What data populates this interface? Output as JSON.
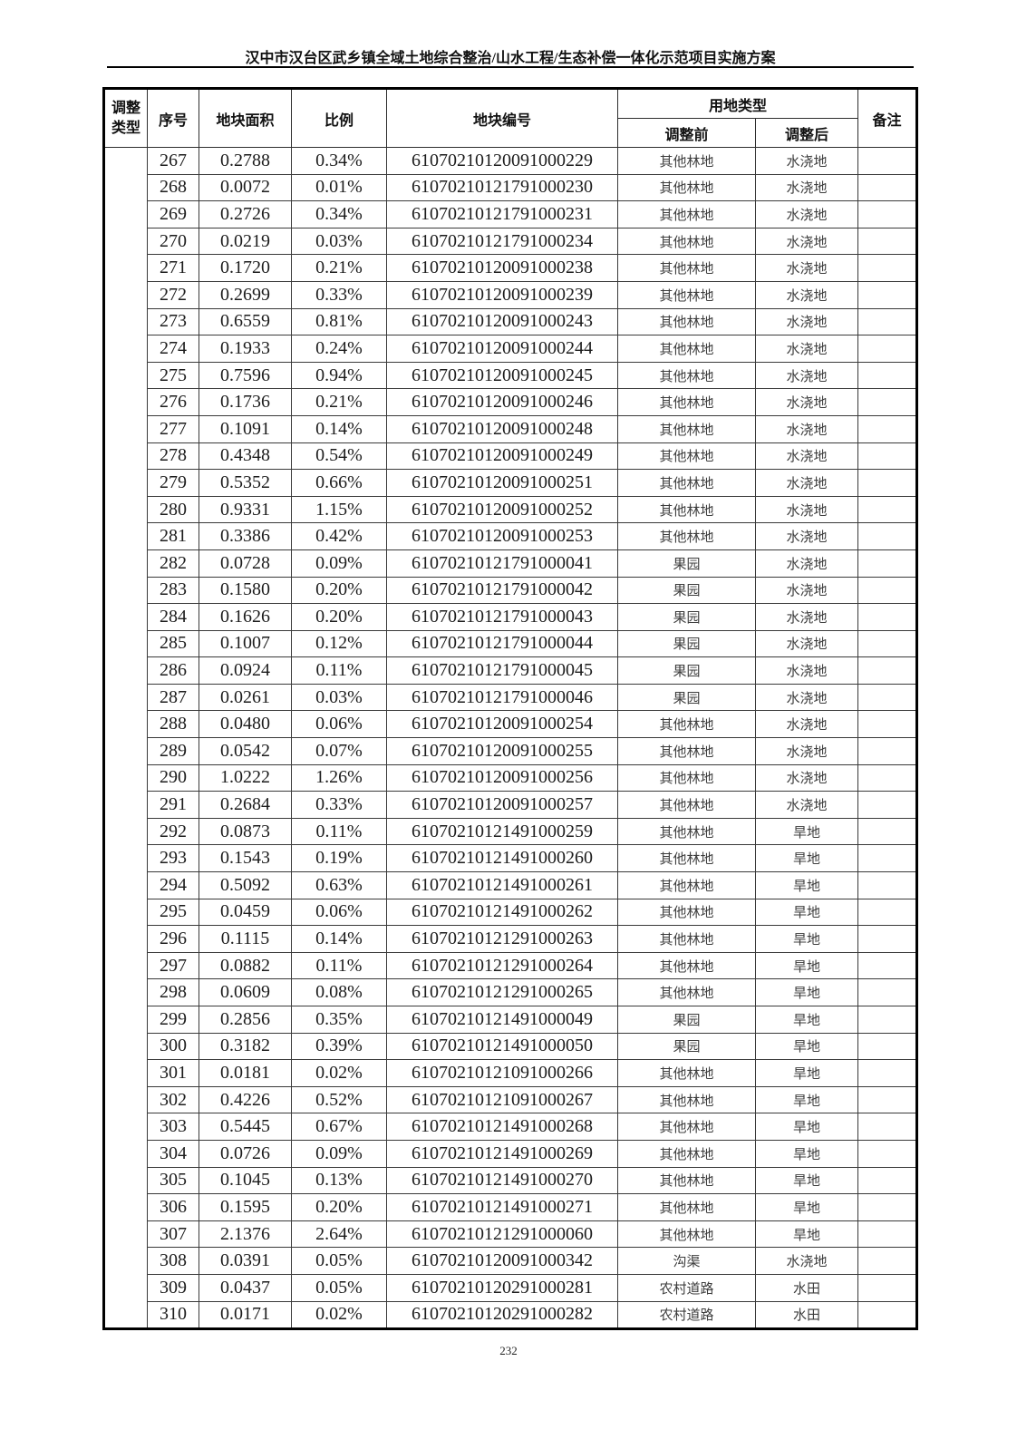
{
  "page": {
    "header_title": "汉中市汉台区武乡镇全域土地综合整治/山水工程/生态补偿一体化示范项目实施方案",
    "page_number": "232"
  },
  "table": {
    "headers": {
      "adjust_type": "调整类型",
      "seq": "序号",
      "area": "地块面积",
      "ratio": "比例",
      "plot_id": "地块编号",
      "land_use_type": "用地类型",
      "before": "调整前",
      "after": "调整后",
      "remark": "备注"
    },
    "merged_type_cell": "",
    "rows": [
      [
        "267",
        "0.2788",
        "0.34%",
        "61070210120091000229",
        "其他林地",
        "水浇地",
        ""
      ],
      [
        "268",
        "0.0072",
        "0.01%",
        "61070210121791000230",
        "其他林地",
        "水浇地",
        ""
      ],
      [
        "269",
        "0.2726",
        "0.34%",
        "61070210121791000231",
        "其他林地",
        "水浇地",
        ""
      ],
      [
        "270",
        "0.0219",
        "0.03%",
        "61070210121791000234",
        "其他林地",
        "水浇地",
        ""
      ],
      [
        "271",
        "0.1720",
        "0.21%",
        "61070210120091000238",
        "其他林地",
        "水浇地",
        ""
      ],
      [
        "272",
        "0.2699",
        "0.33%",
        "61070210120091000239",
        "其他林地",
        "水浇地",
        ""
      ],
      [
        "273",
        "0.6559",
        "0.81%",
        "61070210120091000243",
        "其他林地",
        "水浇地",
        ""
      ],
      [
        "274",
        "0.1933",
        "0.24%",
        "61070210120091000244",
        "其他林地",
        "水浇地",
        ""
      ],
      [
        "275",
        "0.7596",
        "0.94%",
        "61070210120091000245",
        "其他林地",
        "水浇地",
        ""
      ],
      [
        "276",
        "0.1736",
        "0.21%",
        "61070210120091000246",
        "其他林地",
        "水浇地",
        ""
      ],
      [
        "277",
        "0.1091",
        "0.14%",
        "61070210120091000248",
        "其他林地",
        "水浇地",
        ""
      ],
      [
        "278",
        "0.4348",
        "0.54%",
        "61070210120091000249",
        "其他林地",
        "水浇地",
        ""
      ],
      [
        "279",
        "0.5352",
        "0.66%",
        "61070210120091000251",
        "其他林地",
        "水浇地",
        ""
      ],
      [
        "280",
        "0.9331",
        "1.15%",
        "61070210120091000252",
        "其他林地",
        "水浇地",
        ""
      ],
      [
        "281",
        "0.3386",
        "0.42%",
        "61070210120091000253",
        "其他林地",
        "水浇地",
        ""
      ],
      [
        "282",
        "0.0728",
        "0.09%",
        "61070210121791000041",
        "果园",
        "水浇地",
        ""
      ],
      [
        "283",
        "0.1580",
        "0.20%",
        "61070210121791000042",
        "果园",
        "水浇地",
        ""
      ],
      [
        "284",
        "0.1626",
        "0.20%",
        "61070210121791000043",
        "果园",
        "水浇地",
        ""
      ],
      [
        "285",
        "0.1007",
        "0.12%",
        "61070210121791000044",
        "果园",
        "水浇地",
        ""
      ],
      [
        "286",
        "0.0924",
        "0.11%",
        "61070210121791000045",
        "果园",
        "水浇地",
        ""
      ],
      [
        "287",
        "0.0261",
        "0.03%",
        "61070210121791000046",
        "果园",
        "水浇地",
        ""
      ],
      [
        "288",
        "0.0480",
        "0.06%",
        "61070210120091000254",
        "其他林地",
        "水浇地",
        ""
      ],
      [
        "289",
        "0.0542",
        "0.07%",
        "61070210120091000255",
        "其他林地",
        "水浇地",
        ""
      ],
      [
        "290",
        "1.0222",
        "1.26%",
        "61070210120091000256",
        "其他林地",
        "水浇地",
        ""
      ],
      [
        "291",
        "0.2684",
        "0.33%",
        "61070210120091000257",
        "其他林地",
        "水浇地",
        ""
      ],
      [
        "292",
        "0.0873",
        "0.11%",
        "61070210121491000259",
        "其他林地",
        "旱地",
        ""
      ],
      [
        "293",
        "0.1543",
        "0.19%",
        "61070210121491000260",
        "其他林地",
        "旱地",
        ""
      ],
      [
        "294",
        "0.5092",
        "0.63%",
        "61070210121491000261",
        "其他林地",
        "旱地",
        ""
      ],
      [
        "295",
        "0.0459",
        "0.06%",
        "61070210121491000262",
        "其他林地",
        "旱地",
        ""
      ],
      [
        "296",
        "0.1115",
        "0.14%",
        "61070210121291000263",
        "其他林地",
        "旱地",
        ""
      ],
      [
        "297",
        "0.0882",
        "0.11%",
        "61070210121291000264",
        "其他林地",
        "旱地",
        ""
      ],
      [
        "298",
        "0.0609",
        "0.08%",
        "61070210121291000265",
        "其他林地",
        "旱地",
        ""
      ],
      [
        "299",
        "0.2856",
        "0.35%",
        "61070210121491000049",
        "果园",
        "旱地",
        ""
      ],
      [
        "300",
        "0.3182",
        "0.39%",
        "61070210121491000050",
        "果园",
        "旱地",
        ""
      ],
      [
        "301",
        "0.0181",
        "0.02%",
        "61070210121091000266",
        "其他林地",
        "旱地",
        ""
      ],
      [
        "302",
        "0.4226",
        "0.52%",
        "61070210121091000267",
        "其他林地",
        "旱地",
        ""
      ],
      [
        "303",
        "0.5445",
        "0.67%",
        "61070210121491000268",
        "其他林地",
        "旱地",
        ""
      ],
      [
        "304",
        "0.0726",
        "0.09%",
        "61070210121491000269",
        "其他林地",
        "旱地",
        ""
      ],
      [
        "305",
        "0.1045",
        "0.13%",
        "61070210121491000270",
        "其他林地",
        "旱地",
        ""
      ],
      [
        "306",
        "0.1595",
        "0.20%",
        "61070210121491000271",
        "其他林地",
        "旱地",
        ""
      ],
      [
        "307",
        "2.1376",
        "2.64%",
        "61070210121291000060",
        "其他林地",
        "旱地",
        ""
      ],
      [
        "308",
        "0.0391",
        "0.05%",
        "61070210120091000342",
        "沟渠",
        "水浇地",
        ""
      ],
      [
        "309",
        "0.0437",
        "0.05%",
        "61070210120291000281",
        "农村道路",
        "水田",
        ""
      ],
      [
        "310",
        "0.0171",
        "0.02%",
        "61070210120291000282",
        "农村道路",
        "水田",
        ""
      ]
    ]
  }
}
